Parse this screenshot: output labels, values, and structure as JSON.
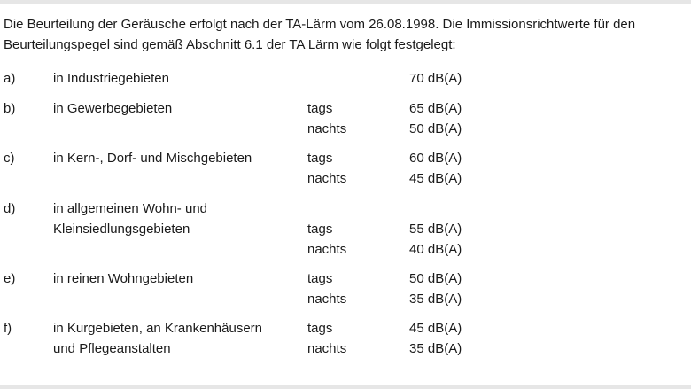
{
  "intro": {
    "line1": "Die Beurteilung der Geräusche erfolgt nach der TA-Lärm vom 26.08.1998. Die Immissionsrichtwerte für den",
    "line2": "Beurteilungspegel sind gemäß Abschnitt 6.1 der TA Lärm wie folgt festgelegt:"
  },
  "rows": [
    {
      "letter": "a)",
      "label": "in Industriegebieten",
      "time": "",
      "value": "70 dB(A)"
    },
    {
      "letter": "b)",
      "label": "in Gewerbegebieten",
      "time": "tags",
      "value": "65 dB(A)"
    },
    {
      "letter": "",
      "label": "",
      "time": "nachts",
      "value": "50 dB(A)"
    },
    {
      "letter": "c)",
      "label": "in Kern-, Dorf- und Mischgebieten",
      "time": "tags",
      "value": "60 dB(A)"
    },
    {
      "letter": "",
      "label": "",
      "time": "nachts",
      "value": "45 dB(A)"
    },
    {
      "letter": "d)",
      "label": "in allgemeinen Wohn- und",
      "time": "",
      "value": ""
    },
    {
      "letter": "",
      "label": "Kleinsiedlungsgebieten",
      "time": "tags",
      "value": "55 dB(A)"
    },
    {
      "letter": "",
      "label": "",
      "time": "nachts",
      "value": "40 dB(A)"
    },
    {
      "letter": "e)",
      "label": "in reinen Wohngebieten",
      "time": "tags",
      "value": "50 dB(A)"
    },
    {
      "letter": "",
      "label": "",
      "time": "nachts",
      "value": "35 dB(A)"
    },
    {
      "letter": "f)",
      "label": "in Kurgebieten, an Krankenhäusern",
      "time": "tags",
      "value": "45 dB(A)"
    },
    {
      "letter": "",
      "label": "und Pflegeanstalten",
      "time": "nachts",
      "value": "35 dB(A)"
    }
  ]
}
